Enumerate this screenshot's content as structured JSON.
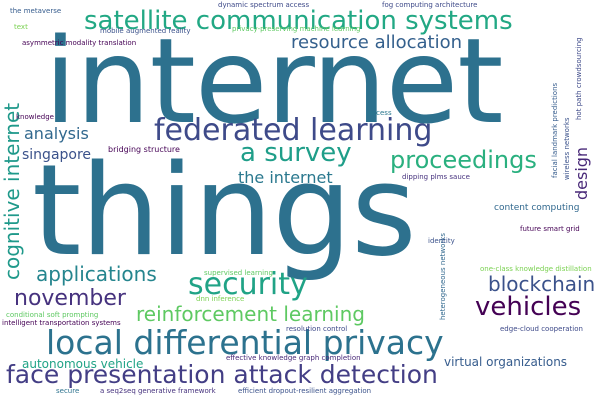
{
  "wordcloud": {
    "background": "#ffffff",
    "words": [
      {
        "text": "internet",
        "color": "#2d718e"
      },
      {
        "text": "things",
        "color": "#2d718e"
      },
      {
        "text": "satellite communication systems",
        "color": "#22a884"
      },
      {
        "text": "federated learning",
        "color": "#3e4a89"
      },
      {
        "text": "local differential privacy",
        "color": "#2c728e"
      },
      {
        "text": "face presentation attack detection",
        "color": "#433e85"
      },
      {
        "text": "resource allocation",
        "color": "#34608d"
      },
      {
        "text": "security",
        "color": "#20a386"
      },
      {
        "text": "proceedings",
        "color": "#2ab07f"
      },
      {
        "text": "a survey",
        "color": "#1f9e89"
      },
      {
        "text": "blockchain",
        "color": "#3b528b"
      },
      {
        "text": "vehicles",
        "color": "#440154"
      },
      {
        "text": "november",
        "color": "#46327e"
      },
      {
        "text": "applications",
        "color": "#25858e"
      },
      {
        "text": "reinforcement learning",
        "color": "#5ec962"
      },
      {
        "text": "cognitive internet",
        "color": "#1f998a"
      },
      {
        "text": "analysis",
        "color": "#31688e"
      },
      {
        "text": "the internet",
        "color": "#2a788e"
      },
      {
        "text": "singapore",
        "color": "#3b528b"
      },
      {
        "text": "design",
        "color": "#482878"
      },
      {
        "text": "autonomous vehicle",
        "color": "#20a386"
      },
      {
        "text": "virtual organizations",
        "color": "#365c8d"
      },
      {
        "text": "content computing",
        "color": "#31688e"
      },
      {
        "text": "bridging structure",
        "color": "#440154"
      },
      {
        "text": "dipping plms sauce",
        "color": "#46327e"
      },
      {
        "text": "dynamic spectrum access",
        "color": "#3e4a89"
      },
      {
        "text": "privacy-preserving machine learning",
        "color": "#5ec962"
      },
      {
        "text": "mobile augmented reality",
        "color": "#3b528b"
      },
      {
        "text": "asymmetric modality translation",
        "color": "#440154"
      },
      {
        "text": "the metaverse",
        "color": "#365c8d"
      },
      {
        "text": "fog computing architecture",
        "color": "#3e4a89"
      },
      {
        "text": "a seq2seq generative framework",
        "color": "#46327e"
      },
      {
        "text": "efficient dropout-resilient aggregation",
        "color": "#3b528b"
      },
      {
        "text": "edge-cloud cooperation",
        "color": "#3e4a89"
      },
      {
        "text": "intelligent transportation systems",
        "color": "#440154"
      },
      {
        "text": "conditional soft prompting",
        "color": "#5ec962"
      },
      {
        "text": "effective knowledge graph completion",
        "color": "#482878"
      },
      {
        "text": "supervised learning",
        "color": "#5ec962"
      },
      {
        "text": "one-class knowledge distillation",
        "color": "#7ad151"
      },
      {
        "text": "future smart grid",
        "color": "#440154"
      },
      {
        "text": "wireless networks",
        "color": "#3b528b"
      },
      {
        "text": "facial landmark predictions",
        "color": "#365c8d"
      },
      {
        "text": "hot path crowdsourcing",
        "color": "#3e4a89"
      },
      {
        "text": "heterogeneous networks",
        "color": "#31688e"
      },
      {
        "text": "knowledge",
        "color": "#440154"
      },
      {
        "text": "text",
        "color": "#7ad151"
      },
      {
        "text": "identity",
        "color": "#3b528b"
      },
      {
        "text": "access",
        "color": "#2a788e"
      },
      {
        "text": "resolution control",
        "color": "#3e4a89"
      },
      {
        "text": "secure",
        "color": "#2c728e"
      },
      {
        "text": "dnn inference",
        "color": "#7ad151"
      }
    ]
  }
}
